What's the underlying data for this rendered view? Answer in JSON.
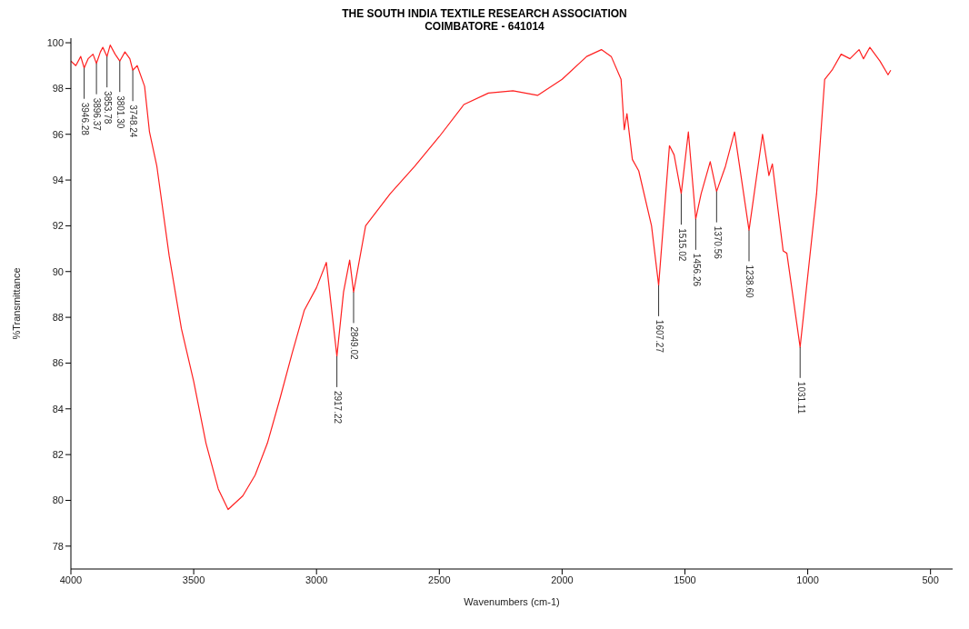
{
  "chart_data": {
    "type": "line",
    "title": "THE SOUTH INDIA TEXTILE RESEARCH ASSOCIATION",
    "subtitle": "COIMBATORE - 641014",
    "xlabel": "Wavenumbers (cm-1)",
    "ylabel": "%Transmittance",
    "x": [
      4000,
      3980,
      3960,
      3946,
      3930,
      3910,
      3896,
      3880,
      3870,
      3853,
      3840,
      3820,
      3801,
      3780,
      3760,
      3748,
      3730,
      3700,
      3680,
      3650,
      3600,
      3550,
      3500,
      3450,
      3400,
      3360,
      3340,
      3300,
      3250,
      3200,
      3150,
      3100,
      3050,
      3000,
      2960,
      2917,
      2890,
      2865,
      2849,
      2800,
      2700,
      2600,
      2500,
      2400,
      2300,
      2200,
      2100,
      2000,
      1900,
      1840,
      1800,
      1760,
      1747,
      1736,
      1714,
      1688,
      1636,
      1607,
      1563,
      1544,
      1515,
      1486,
      1456,
      1434,
      1397,
      1371,
      1335,
      1298,
      1239,
      1184,
      1158,
      1144,
      1100,
      1085,
      1031,
      964,
      931,
      901,
      864,
      828,
      791,
      773,
      747,
      706,
      673,
      662
    ],
    "series": [
      {
        "color": "#ff2020",
        "values": [
          99.2,
          99.0,
          99.4,
          98.9,
          99.3,
          99.5,
          99.1,
          99.6,
          99.8,
          99.4,
          99.9,
          99.5,
          99.2,
          99.6,
          99.3,
          98.8,
          99.0,
          98.1,
          96.1,
          94.6,
          90.7,
          87.5,
          85.2,
          82.5,
          80.5,
          79.6,
          79.8,
          80.2,
          81.1,
          82.5,
          84.4,
          86.4,
          88.3,
          89.3,
          90.4,
          86.3,
          89.1,
          90.5,
          89.1,
          92.0,
          93.4,
          94.6,
          95.9,
          97.3,
          97.8,
          97.9,
          97.7,
          98.4,
          99.4,
          99.7,
          99.4,
          98.4,
          96.2,
          96.9,
          94.9,
          94.4,
          92.0,
          89.4,
          95.5,
          95.1,
          93.4,
          96.1,
          92.3,
          93.4,
          94.8,
          93.5,
          94.6,
          96.1,
          91.8,
          96.0,
          94.2,
          94.7,
          90.9,
          90.8,
          86.7,
          93.4,
          98.4,
          98.8,
          99.5,
          99.3,
          99.7,
          99.3,
          99.8,
          99.2,
          98.6,
          98.8
        ]
      }
    ],
    "xlim": [
      4000,
      410
    ],
    "xticks": [
      4000,
      3500,
      3000,
      2500,
      2000,
      1500,
      1000,
      500
    ],
    "ylim": [
      77,
      100.2
    ],
    "yticks": [
      78,
      80,
      82,
      84,
      86,
      88,
      90,
      92,
      94,
      96,
      98,
      100
    ],
    "annotations": [
      {
        "text": "3946.28",
        "x": 3946,
        "y": 98.9
      },
      {
        "text": "3896.37",
        "x": 3896,
        "y": 99.1
      },
      {
        "text": "3853.78",
        "x": 3853,
        "y": 99.4
      },
      {
        "text": "3801.30",
        "x": 3801,
        "y": 99.2
      },
      {
        "text": "3748.24",
        "x": 3748,
        "y": 98.8
      },
      {
        "text": "2917.22",
        "x": 2917,
        "y": 86.3
      },
      {
        "text": "2849.02",
        "x": 2849,
        "y": 89.1
      },
      {
        "text": "1607.27",
        "x": 1607,
        "y": 89.4
      },
      {
        "text": "1515.02",
        "x": 1515,
        "y": 93.4
      },
      {
        "text": "1456.26",
        "x": 1456,
        "y": 92.3
      },
      {
        "text": "1370.56",
        "x": 1371,
        "y": 93.5
      },
      {
        "text": "1238.60",
        "x": 1239,
        "y": 91.8
      },
      {
        "text": "1031.11",
        "x": 1031,
        "y": 86.7
      }
    ]
  }
}
